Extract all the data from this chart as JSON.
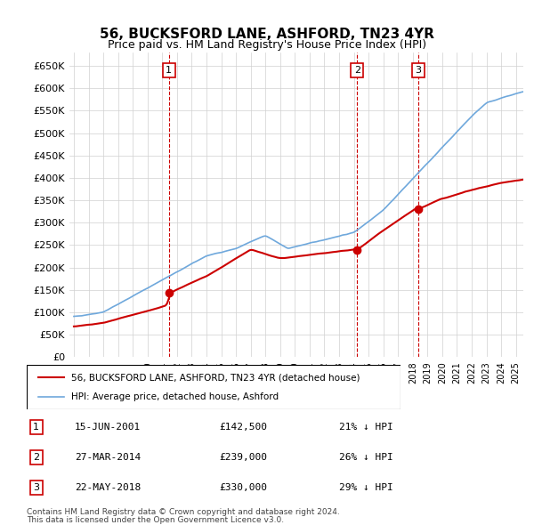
{
  "title": "56, BUCKSFORD LANE, ASHFORD, TN23 4YR",
  "subtitle": "Price paid vs. HM Land Registry's House Price Index (HPI)",
  "ylabel_ticks": [
    "£0",
    "£50K",
    "£100K",
    "£150K",
    "£200K",
    "£250K",
    "£300K",
    "£350K",
    "£400K",
    "£450K",
    "£500K",
    "£550K",
    "£600K",
    "£650K"
  ],
  "ytick_vals": [
    0,
    50000,
    100000,
    150000,
    200000,
    250000,
    300000,
    350000,
    400000,
    450000,
    500000,
    550000,
    600000,
    650000
  ],
  "ylim": [
    0,
    680000
  ],
  "xlim_start": 1995.0,
  "xlim_end": 2025.5,
  "hpi_color": "#6fa8dc",
  "price_color": "#cc0000",
  "sale_marker_color": "#cc0000",
  "vline_color": "#cc0000",
  "grid_color": "#d0d0d0",
  "background_color": "#ffffff",
  "sales": [
    {
      "label": "1",
      "date_num": 2001.45,
      "price": 142500,
      "hpi_note": "21% ↓ HPI",
      "date_str": "15-JUN-2001",
      "price_str": "£142,500"
    },
    {
      "label": "2",
      "date_num": 2014.23,
      "price": 239000,
      "hpi_note": "26% ↓ HPI",
      "date_str": "27-MAR-2014",
      "price_str": "£239,000"
    },
    {
      "label": "3",
      "date_num": 2018.38,
      "price": 330000,
      "hpi_note": "29% ↓ HPI",
      "date_str": "22-MAY-2018",
      "price_str": "£330,000"
    }
  ],
  "legend_label_price": "56, BUCKSFORD LANE, ASHFORD, TN23 4YR (detached house)",
  "legend_label_hpi": "HPI: Average price, detached house, Ashford",
  "footer1": "Contains HM Land Registry data © Crown copyright and database right 2024.",
  "footer2": "This data is licensed under the Open Government Licence v3.0."
}
